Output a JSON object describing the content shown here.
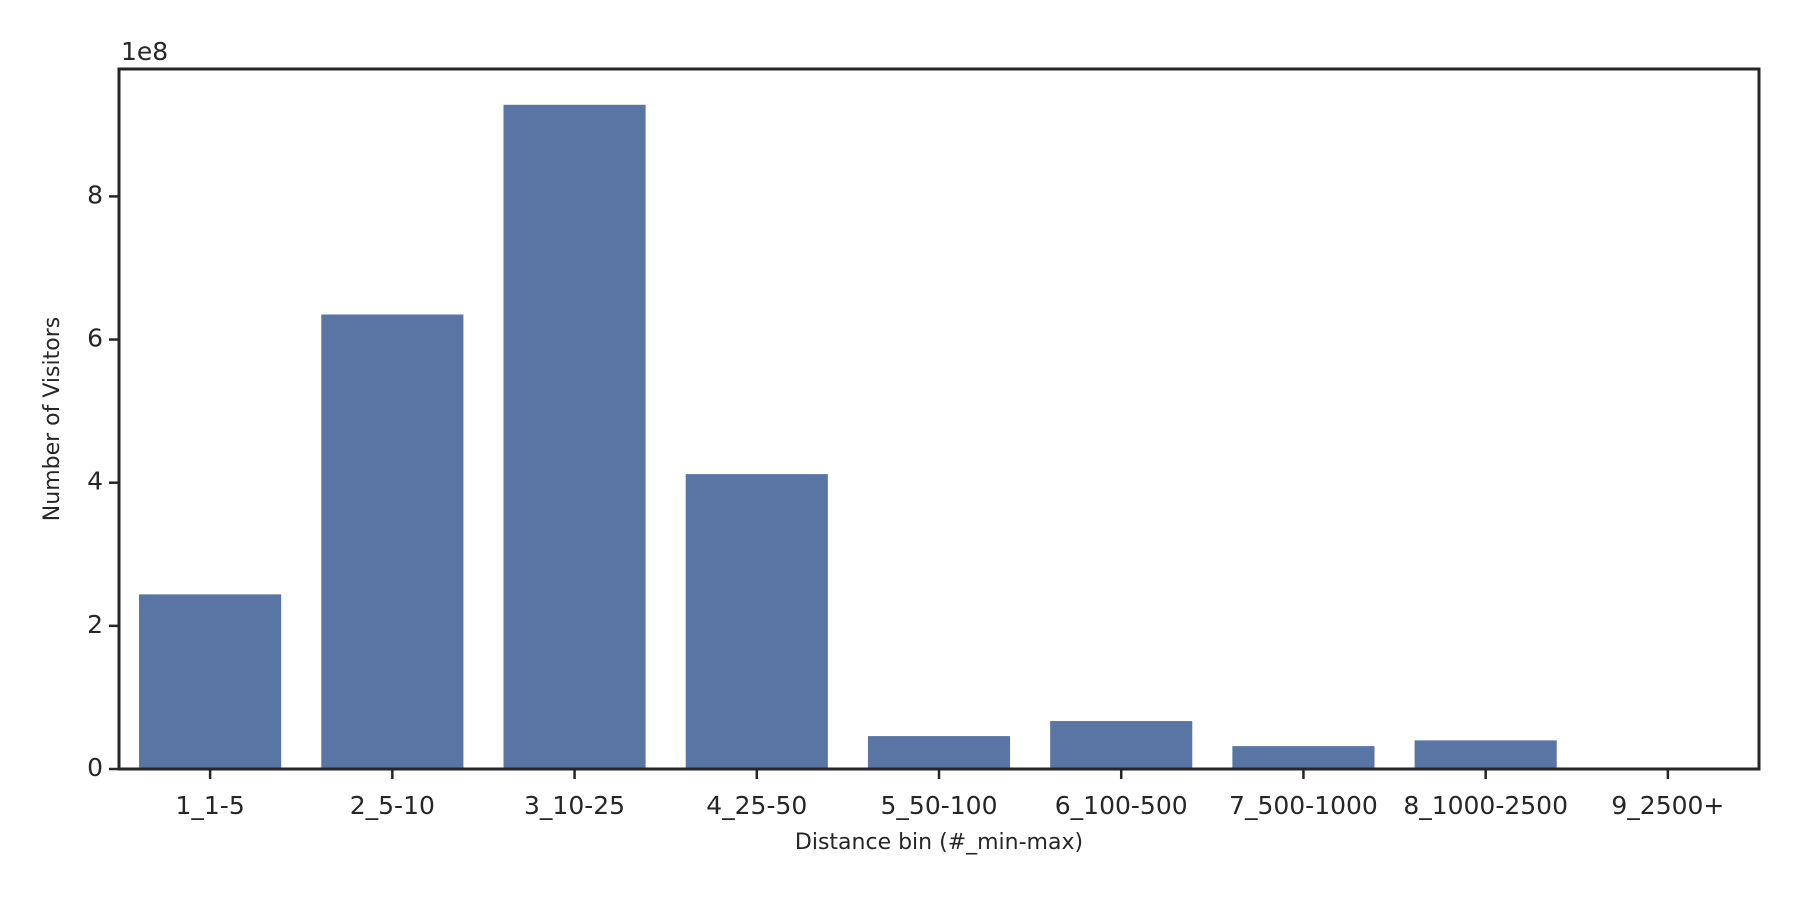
{
  "chart_data": {
    "type": "bar",
    "x_label": "Distance bin (#_min-max)",
    "y_label": "Number of Visitors",
    "y_offset_text": "1e8",
    "categories": [
      "1_1-5",
      "2_5-10",
      "3_10-25",
      "4_25-50",
      "5_50-100",
      "6_100-500",
      "7_500-1000",
      "8_1000-2500",
      "9_2500+"
    ],
    "values": [
      2.44,
      6.35,
      9.28,
      4.12,
      0.46,
      0.67,
      0.32,
      0.4,
      0
    ],
    "color": "#5875a4",
    "ylim": [
      0,
      9.78
    ],
    "yticks": [
      0,
      2,
      4,
      6,
      8
    ],
    "grid": false
  }
}
